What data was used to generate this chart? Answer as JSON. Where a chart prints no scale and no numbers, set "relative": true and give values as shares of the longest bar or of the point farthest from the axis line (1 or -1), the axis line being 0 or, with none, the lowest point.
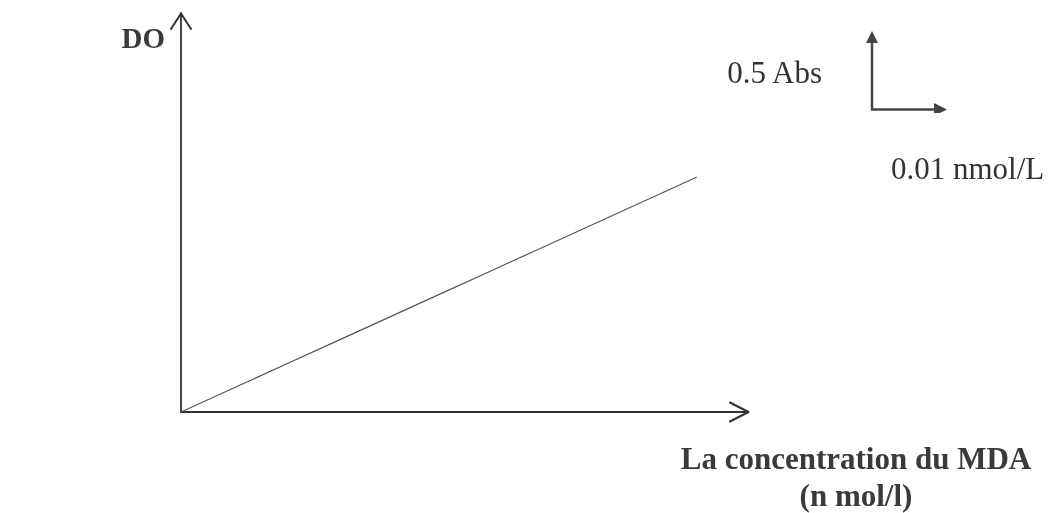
{
  "chart_data": {
    "type": "line",
    "xlabel": "La concentration du MDA\n(n mol/l)",
    "ylabel": "DO",
    "annotations": [
      "0.5 Abs",
      "0.01 nmol/L"
    ],
    "relative": true,
    "categories": [
      null,
      null,
      null,
      null,
      null,
      null,
      null,
      null,
      null,
      null,
      null,
      null
    ],
    "series": [
      {
        "color": "#555555",
        "values": [
          0,
          0.1,
          0.2,
          0.3,
          0.4,
          0.5,
          0.6,
          0.7,
          0.8,
          0.9,
          1,
          null
        ]
      }
    ],
    "marker": "none",
    "line_style": "solid"
  }
}
